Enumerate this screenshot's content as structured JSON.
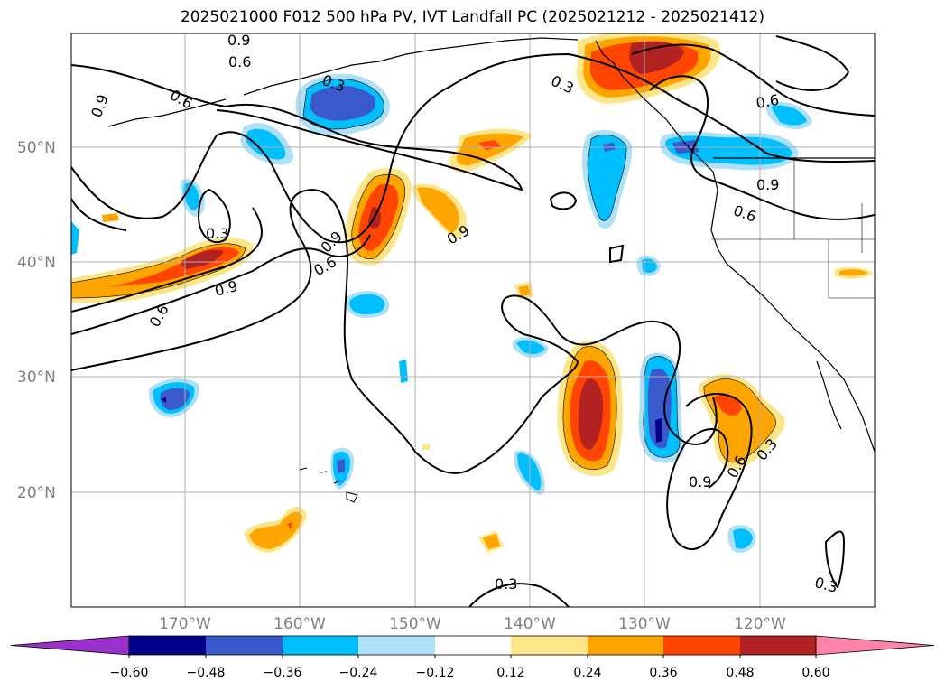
{
  "title": "2025021000 F012 500 hPa PV, IVT Landfall PC (2025021212 - 2025021412)",
  "lat_labels": [
    "50°N",
    "40°N",
    "30°N",
    "20°N"
  ],
  "lon_labels": [
    "170°W",
    "160°W",
    "150°W",
    "140°W",
    "130°W",
    "120°W"
  ],
  "contour_levels": [
    "0.3",
    "0.6",
    "0.9"
  ],
  "contour_labels": [
    "0.9",
    "0.6",
    "0.6",
    "0.9",
    "0.3",
    "0.3",
    "0.6",
    "0.9",
    "0.6",
    "0.3",
    "0.9",
    "0.6",
    "0.9",
    "0.9",
    "0.6",
    "0.3",
    "0.9",
    "0.6",
    "0.3",
    "0.3",
    "0.3"
  ],
  "colorbar": {
    "ticks": [
      "−0.60",
      "−0.48",
      "−0.36",
      "−0.24",
      "−0.12",
      "0.12",
      "0.24",
      "0.36",
      "0.48",
      "0.60"
    ],
    "colors": {
      "neg_extend": "#9932cc",
      "n060": "#00008b",
      "n048": "#3a5acc",
      "n036": "#00bfff",
      "n024": "#aee0f8",
      "neutral": "#ffffff",
      "p012": "#fde68a",
      "p024": "#ffa500",
      "p036": "#ff4500",
      "p048": "#b22222",
      "pos_extend": "#ff85a8"
    }
  },
  "colors": {
    "grid": "#b0b0b0",
    "coast": "#000000",
    "contour": "#000000",
    "frame": "#000000"
  }
}
